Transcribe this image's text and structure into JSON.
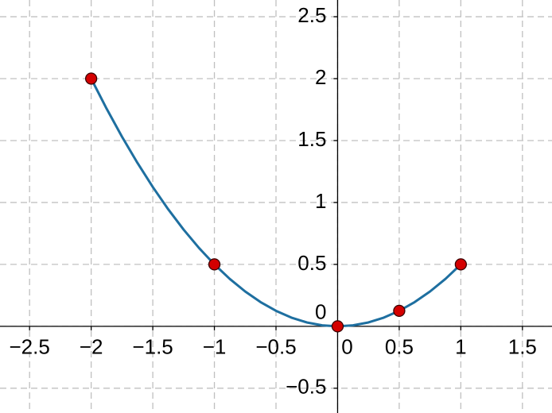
{
  "chart_data": {
    "type": "line",
    "xlim": [
      -2.74,
      1.74
    ],
    "ylim": [
      -0.7,
      2.635
    ],
    "grid": true,
    "xticks": [
      {
        "value": -2.5,
        "label": "−2.5"
      },
      {
        "value": -2,
        "label": "−2"
      },
      {
        "value": -1.5,
        "label": "−1.5"
      },
      {
        "value": -1,
        "label": "−1"
      },
      {
        "value": -0.5,
        "label": "−0.5"
      },
      0,
      0.5,
      1,
      1.5
    ],
    "yticks": [
      {
        "value": -0.5,
        "label": "−0.5"
      },
      0,
      0.5,
      1,
      1.5,
      2,
      2.5
    ],
    "series": [
      {
        "color": "#1e6fa0",
        "line": true,
        "x": [
          -2,
          -1.875,
          -1.75,
          -1.625,
          -1.5,
          -1.375,
          -1.25,
          -1.125,
          -1,
          -0.875,
          -0.75,
          -0.625,
          -0.5,
          -0.375,
          -0.25,
          -0.125,
          0,
          0.125,
          0.25,
          0.375,
          0.5,
          0.625,
          0.75,
          0.875,
          1
        ],
        "values": [
          2,
          1.7578125,
          1.53125,
          1.3203125,
          1.125,
          0.9453125,
          0.78125,
          0.6328125,
          0.5,
          0.3828125,
          0.28125,
          0.1953125,
          0.125,
          0.0703125,
          0.03125,
          0.0078125,
          0,
          0.0078125,
          0.03125,
          0.0703125,
          0.125,
          0.1953125,
          0.28125,
          0.3828125,
          0.5
        ]
      },
      {
        "color": "#d40000",
        "line": false,
        "x": [
          -2,
          -1,
          0,
          0.5,
          1
        ],
        "values": [
          2,
          0.5,
          0,
          0.125,
          0.5
        ]
      }
    ]
  }
}
